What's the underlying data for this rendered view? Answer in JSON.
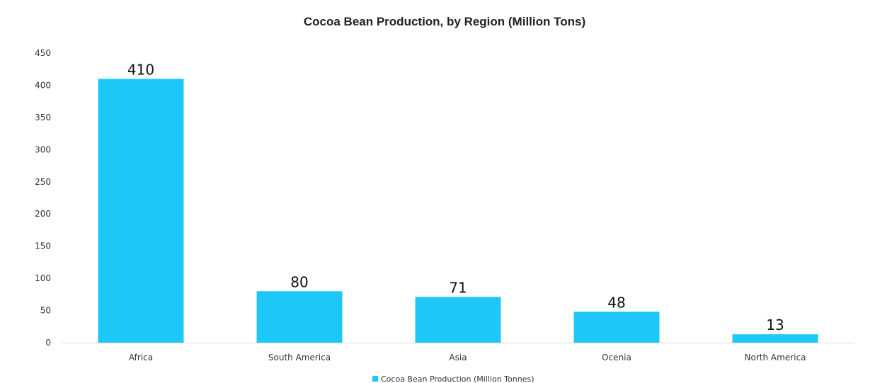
{
  "chart_data": {
    "type": "bar",
    "title": "Cocoa Bean Production, by Region (Million Tons)",
    "xlabel": "",
    "ylabel": "",
    "categories": [
      "Africa",
      "South America",
      "Asia",
      "Ocenia",
      "North America"
    ],
    "series": [
      {
        "name": "Cocoa Bean Production (Million Tonnes)",
        "values": [
          410,
          80,
          71,
          48,
          13
        ],
        "data_labels": [
          "410",
          "80",
          "71",
          "48",
          "13"
        ],
        "color": "#1DC8F8"
      }
    ],
    "ylim": [
      0,
      450
    ],
    "yticks": [
      "0",
      "50",
      "100",
      "150",
      "200",
      "250",
      "300",
      "350",
      "400",
      "450"
    ],
    "grid": false,
    "legend_position": "bottom-center"
  }
}
